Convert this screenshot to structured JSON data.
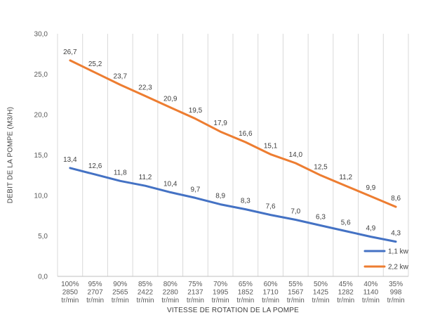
{
  "chart_data": {
    "type": "line",
    "xlabel": "VITESSE DE ROTATION DE LA POMPE",
    "ylabel": "DEBIT DE LA POMPE (M3/H)",
    "ylim": [
      0,
      30
    ],
    "yticks": [
      "0,0",
      "5,0",
      "10,0",
      "15,0",
      "20,0",
      "25,0",
      "30,0"
    ],
    "grid": "vertical",
    "legend_position": "bottom-right",
    "categories": [
      [
        "100%",
        "2850",
        "tr/min"
      ],
      [
        "95%",
        "2707",
        "tr/min"
      ],
      [
        "90%",
        "2565",
        "tr/min"
      ],
      [
        "85%",
        "2422",
        "tr/min"
      ],
      [
        "80%",
        "2280",
        "tr/min"
      ],
      [
        "75%",
        "2137",
        "tr/min"
      ],
      [
        "70%",
        "1995",
        "tr/min"
      ],
      [
        "65%",
        "1852",
        "tr/min"
      ],
      [
        "60%",
        "1710",
        "tr/min"
      ],
      [
        "55%",
        "1567",
        "tr/min"
      ],
      [
        "50%",
        "1425",
        "tr/min"
      ],
      [
        "45%",
        "1282",
        "tr/min"
      ],
      [
        "40%",
        "1140",
        "tr/min"
      ],
      [
        "35%",
        "998",
        "tr/min"
      ]
    ],
    "series": [
      {
        "name": "1,1 kw",
        "color": "#4472C4",
        "values": [
          13.4,
          12.6,
          11.8,
          11.2,
          10.4,
          9.7,
          8.9,
          8.3,
          7.6,
          7.0,
          6.3,
          5.6,
          4.9,
          4.3
        ],
        "labels": [
          "13,4",
          "12,6",
          "11,8",
          "11,2",
          "10,4",
          "9,7",
          "8,9",
          "8,3",
          "7,6",
          "7,0",
          "6,3",
          "5,6",
          "4,9",
          "4,3"
        ]
      },
      {
        "name": "2,2 kw",
        "color": "#ED7D31",
        "values": [
          26.7,
          25.2,
          23.7,
          22.3,
          20.9,
          19.5,
          17.9,
          16.6,
          15.1,
          14.0,
          12.5,
          11.2,
          9.9,
          8.6
        ],
        "labels": [
          "26,7",
          "25,2",
          "23,7",
          "22,3",
          "20,9",
          "19,5",
          "17,9",
          "16,6",
          "15,1",
          "14,0",
          "12,5",
          "11,2",
          "9,9",
          "8,6"
        ]
      }
    ]
  }
}
